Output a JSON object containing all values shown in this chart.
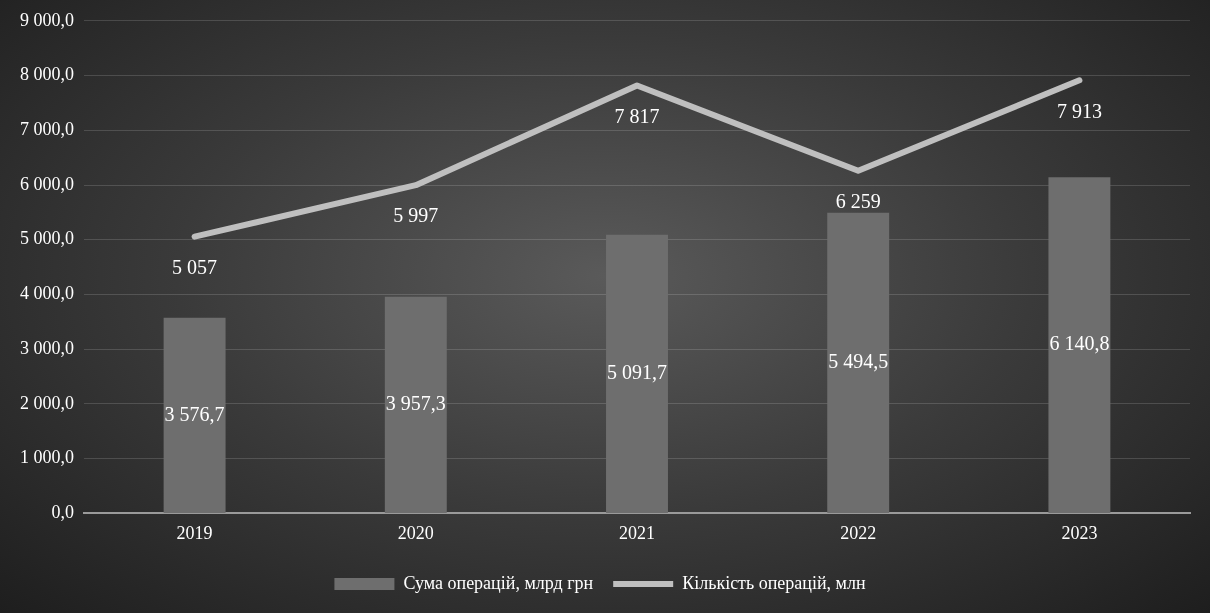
{
  "chart_data": {
    "type": "bar",
    "categories": [
      "2019",
      "2020",
      "2021",
      "2022",
      "2023"
    ],
    "series": [
      {
        "name": "Сума операцій, млрд грн",
        "color": "#6e6e6e",
        "values": [
          3576.7,
          3957.3,
          5091.7,
          5494.5,
          6140.8
        ],
        "value_labels": [
          "3 576,7",
          "3 957,3",
          "5 091,7",
          "5 494,5",
          "6 140,8"
        ]
      },
      {
        "name": "Кількість операцій, млн",
        "type": "line",
        "color": "#bfbfbf",
        "values": [
          5057,
          5997,
          7817,
          6259,
          7913
        ],
        "value_labels": [
          "5 057",
          "5 997",
          "7 817",
          "6 259",
          "7 913"
        ]
      }
    ],
    "ylim": [
      0,
      9000
    ],
    "yticks": [
      {
        "value": 0,
        "label": "0,0"
      },
      {
        "value": 1000,
        "label": "1 000,0"
      },
      {
        "value": 2000,
        "label": "2 000,0"
      },
      {
        "value": 3000,
        "label": "3 000,0"
      },
      {
        "value": 4000,
        "label": "4 000,0"
      },
      {
        "value": 5000,
        "label": "5 000,0"
      },
      {
        "value": 6000,
        "label": "6 000,0"
      },
      {
        "value": 7000,
        "label": "7 000,0"
      },
      {
        "value": 8000,
        "label": "8 000,0"
      },
      {
        "value": 9000,
        "label": "9 000,0"
      }
    ],
    "grid": "y",
    "legend": "bottom",
    "marker": "none"
  }
}
